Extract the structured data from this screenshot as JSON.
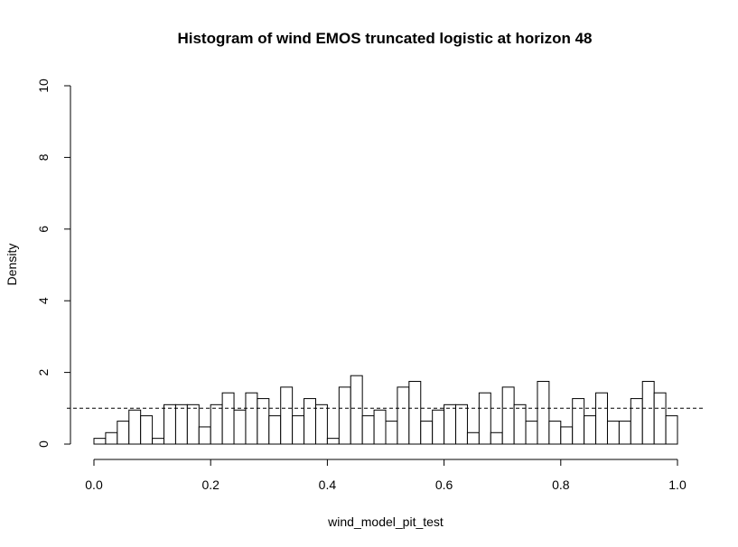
{
  "chart_data": {
    "type": "bar",
    "title": "Histogram of wind EMOS truncated logistic at horizon 48",
    "xlabel": "wind_model_pit_test",
    "ylabel": "Density",
    "xlim": [
      0,
      1
    ],
    "ylim": [
      0,
      10
    ],
    "xticks": [
      "0.0",
      "0.2",
      "0.4",
      "0.6",
      "0.8",
      "1.0"
    ],
    "yticks": [
      "0",
      "2",
      "4",
      "6",
      "8",
      "10"
    ],
    "bin_width": 0.02,
    "bin_start": 0,
    "values": [
      0.16,
      0.32,
      0.64,
      0.95,
      0.79,
      0.16,
      1.1,
      1.1,
      1.1,
      0.48,
      1.1,
      1.43,
      0.95,
      1.43,
      1.27,
      0.79,
      1.59,
      0.79,
      1.27,
      1.1,
      0.16,
      1.59,
      1.91,
      0.79,
      0.95,
      0.64,
      1.59,
      1.75,
      0.64,
      0.95,
      1.1,
      1.1,
      0.32,
      1.43,
      0.32,
      1.59,
      1.1,
      0.64,
      1.75,
      0.64,
      0.48,
      1.27,
      0.79,
      1.43,
      0.64,
      0.64,
      1.27,
      1.75,
      1.43,
      0.79
    ],
    "reference_line": 1,
    "grid": false,
    "colors": {
      "bar_fill": "#ffffff",
      "bar_stroke": "#000000",
      "axis": "#000000"
    }
  }
}
